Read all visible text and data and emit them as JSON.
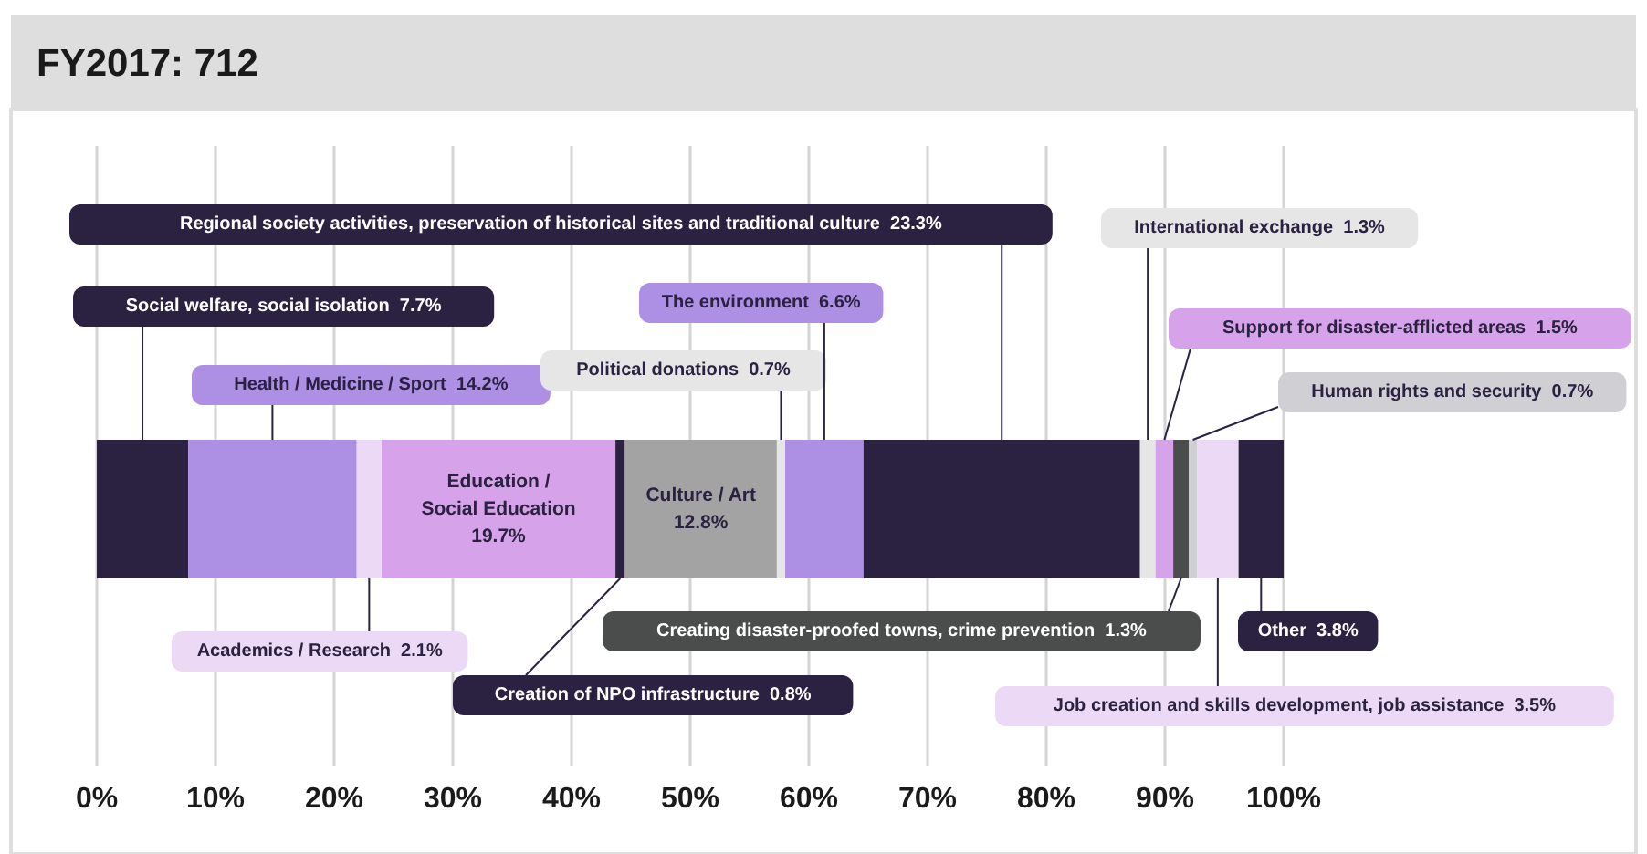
{
  "chart_data": {
    "type": "bar",
    "title": "FY2017: 712",
    "orientation": "horizontal",
    "stacked": true,
    "categories": [
      null
    ],
    "xlim": [
      0,
      100
    ],
    "xticks": [
      {
        "value": 0,
        "label": "0%"
      },
      {
        "value": 10,
        "label": "10%"
      },
      {
        "value": 20,
        "label": "20%"
      },
      {
        "value": 30,
        "label": "30%"
      },
      {
        "value": 40,
        "label": "40%"
      },
      {
        "value": 50,
        "label": "50%"
      },
      {
        "value": 60,
        "label": "60%"
      },
      {
        "value": 70,
        "label": "70%"
      },
      {
        "value": 80,
        "label": "80%"
      },
      {
        "value": 90,
        "label": "90%"
      },
      {
        "value": 100,
        "label": "100%"
      }
    ],
    "grid": "x",
    "series": [
      {
        "name": "Social welfare, social isolation",
        "color": "#2b2140",
        "values": [
          7.7
        ],
        "value_labels": [
          "7.7%"
        ]
      },
      {
        "name": "Health / Medicine / Sport",
        "color": "#ad8fe3",
        "values": [
          14.2
        ],
        "value_labels": [
          "14.2%"
        ]
      },
      {
        "name": "Academics / Research",
        "color": "#ecd9f5",
        "values": [
          2.1
        ],
        "value_labels": [
          "2.1%"
        ]
      },
      {
        "name": "Education / Social Education",
        "color": "#d6a3ea",
        "values": [
          19.7
        ],
        "value_labels": [
          "19.7%"
        ]
      },
      {
        "name": "Creation of NPO infrastructure",
        "color": "#2b2140",
        "values": [
          0.8
        ],
        "value_labels": [
          "0.8%"
        ]
      },
      {
        "name": "Culture / Art",
        "color": "#a3a3a3",
        "values": [
          12.8
        ],
        "value_labels": [
          "12.8%"
        ]
      },
      {
        "name": "Political donations",
        "color": "#e6e6e6",
        "values": [
          0.7
        ],
        "value_labels": [
          "0.7%"
        ]
      },
      {
        "name": "The environment",
        "color": "#ad8fe3",
        "values": [
          6.6
        ],
        "value_labels": [
          "6.6%"
        ]
      },
      {
        "name": "Regional society activities, preservation of historical sites and traditional culture",
        "color": "#2b2140",
        "values": [
          23.3
        ],
        "value_labels": [
          "23.3%"
        ]
      },
      {
        "name": "International exchange",
        "color": "#e6e6e6",
        "values": [
          1.3
        ],
        "value_labels": [
          "1.3%"
        ]
      },
      {
        "name": "Support for disaster-afflicted areas",
        "color": "#d6a3ea",
        "values": [
          1.5
        ],
        "value_labels": [
          "1.5%"
        ]
      },
      {
        "name": "Creating disaster-proofed towns, crime prevention",
        "color": "#4a4d4c",
        "values": [
          1.3
        ],
        "value_labels": [
          "1.3%"
        ]
      },
      {
        "name": "Human rights and security",
        "color": "#cfcfd4",
        "values": [
          0.7
        ],
        "value_labels": [
          "0.7%"
        ]
      },
      {
        "name": "Job creation and skills development, job assistance",
        "color": "#ecd9f5",
        "values": [
          3.5
        ],
        "value_labels": [
          "3.5%"
        ]
      },
      {
        "name": "Other",
        "color": "#2b2140",
        "values": [
          3.8
        ],
        "value_labels": [
          "3.8%"
        ]
      }
    ]
  }
}
